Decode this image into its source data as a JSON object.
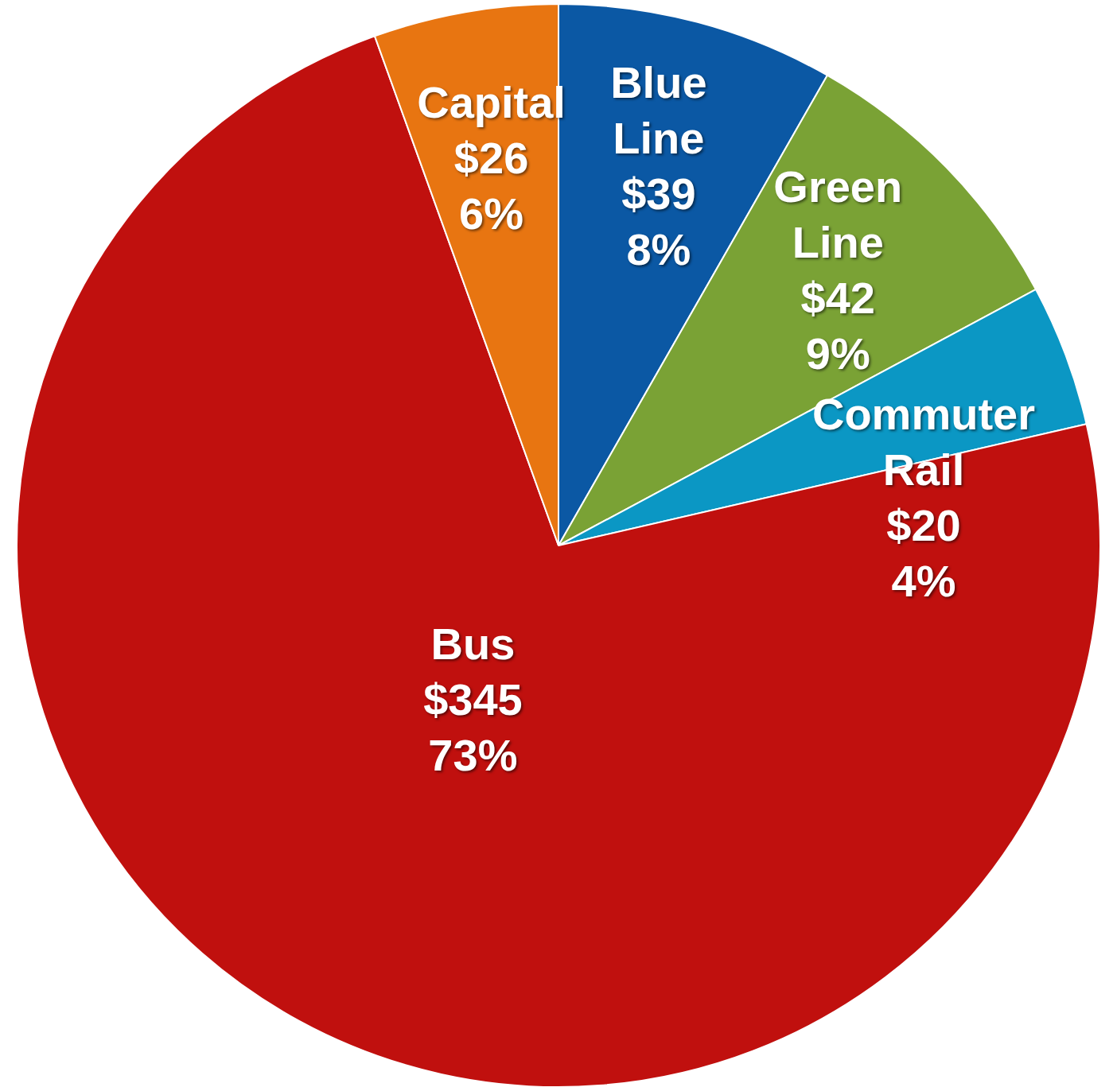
{
  "chart_data": {
    "type": "pie",
    "categories": [
      "Blue Line",
      "Green Line",
      "Commuter Rail",
      "Bus",
      "Capital"
    ],
    "values": [
      39,
      42,
      20,
      345,
      26
    ],
    "value_labels": [
      "$39\n8%",
      "$42\n9%",
      "$20\n4%",
      "$345\n73%",
      "$26\n6%"
    ],
    "colors": [
      "#0b58a4",
      "#7aa235",
      "#0b97c4",
      "#c0100e",
      "#e87511"
    ],
    "legend": false
  }
}
